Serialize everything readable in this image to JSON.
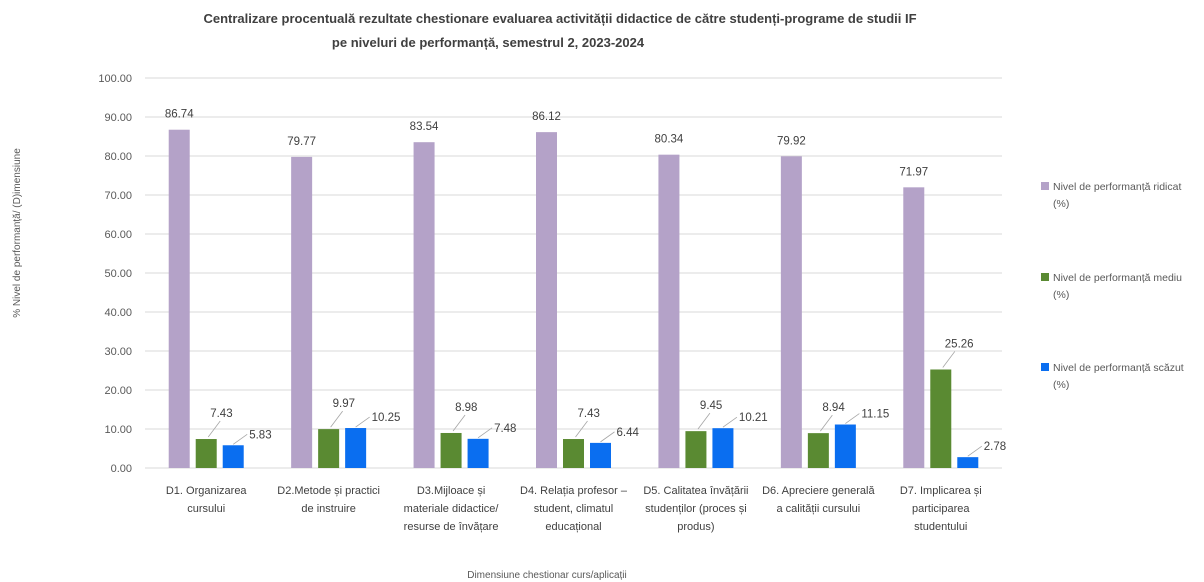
{
  "chart_data": {
    "type": "bar",
    "title_lines": [
      "Centralizare  procentuală rezultate chestionare evaluarea activității didactice de către studenți-programe de studii IF",
      "pe niveluri de performanță, semestrul 2, 2023-2024"
    ],
    "xlabel": "Dimensiune chestionar curs/aplicații",
    "ylabel": "% Nivel de performanță/ (D)imensiune",
    "ylim": [
      0,
      100
    ],
    "yticks": [
      "0.00",
      "10.00",
      "20.00",
      "30.00",
      "40.00",
      "50.00",
      "60.00",
      "70.00",
      "80.00",
      "90.00",
      "100.00"
    ],
    "grid": true,
    "legend_position": "right",
    "categories": [
      [
        "D1. Organizarea",
        "cursului"
      ],
      [
        "D2.Metode și practici",
        "de instruire"
      ],
      [
        "D3.Mijloace și",
        "materiale didactice/",
        "resurse de învățare"
      ],
      [
        "D4. Relația profesor –",
        "student, climatul",
        "educațional"
      ],
      [
        "D5. Calitatea învățării",
        "studenților (proces și",
        "produs)"
      ],
      [
        "D6. Apreciere generală",
        "a calității cursului"
      ],
      [
        "D7. Implicarea și",
        "participarea",
        "studentului"
      ]
    ],
    "series": [
      {
        "name_lines": [
          "Nivel de performanță ridicat",
          "(%)"
        ],
        "color": "#b4a2c8",
        "values": [
          86.74,
          79.77,
          83.54,
          86.12,
          80.34,
          79.92,
          71.97
        ],
        "labels": [
          "86.74",
          "79.77",
          "83.54",
          "86.12",
          "80.34",
          "79.92",
          "71.97"
        ]
      },
      {
        "name_lines": [
          "Nivel de performanță mediu",
          "(%)"
        ],
        "color": "#5a8a32",
        "values": [
          7.43,
          9.97,
          8.98,
          7.43,
          9.45,
          8.94,
          25.26
        ],
        "labels": [
          "7.43",
          "9.97",
          "8.98",
          "7.43",
          "9.45",
          "8.94",
          "25.26"
        ]
      },
      {
        "name_lines": [
          "Nivel de performanță scăzut",
          "(%)"
        ],
        "color": "#0a6ef0",
        "values": [
          5.83,
          10.25,
          7.48,
          6.44,
          10.21,
          11.15,
          2.78
        ],
        "labels": [
          "5.83",
          "10.25",
          "7.48",
          "6.44",
          "10.21",
          "11.15",
          "2.78"
        ]
      }
    ]
  }
}
